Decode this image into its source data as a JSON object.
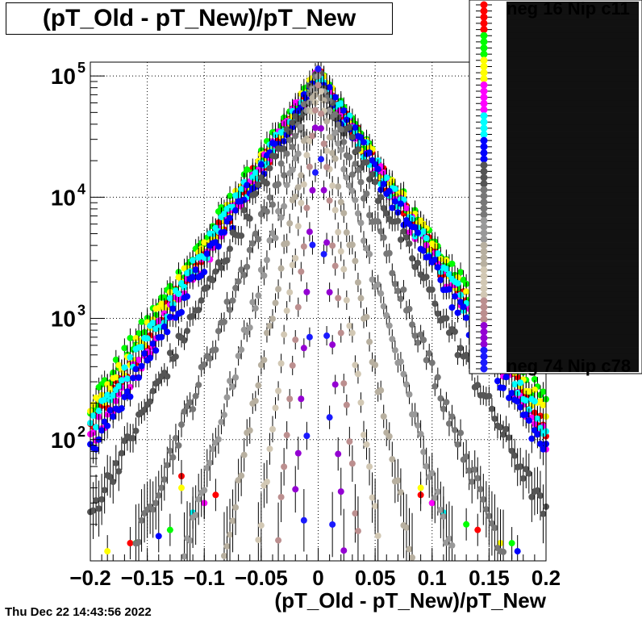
{
  "title": "(pT_Old - pT_New)/pT_New",
  "timestamp": "Thu Dec 22 14:43:56 2022",
  "legend_entries": [
    "neg 16 Nip c11",
    "neg 74 Nip c78"
  ],
  "chart_data": {
    "type": "scatter",
    "title": "(pT_Old - pT_New)/pT_New",
    "xlabel": "(pT_Old - pT_New)/pT_New",
    "ylabel": "",
    "xlim": [
      -0.2,
      0.2
    ],
    "ylim": [
      10,
      130000
    ],
    "ylog": true,
    "grid": true,
    "legend_position": "right",
    "x_ticks": [
      -0.2,
      -0.15,
      -0.1,
      -0.05,
      0,
      0.05,
      0.1,
      0.15,
      0.2
    ],
    "x_tick_labels": [
      "−0.2",
      "−0.15",
      "−0.1",
      "−0.05",
      "0",
      "0.05",
      "0.1",
      "0.15",
      "0.2"
    ],
    "y_ticks": [
      100,
      1000,
      10000,
      100000
    ],
    "y_tick_labels": [
      {
        "base": "10",
        "exp": "2"
      },
      {
        "base": "10",
        "exp": "3"
      },
      {
        "base": "10",
        "exp": "4"
      },
      {
        "base": "10",
        "exp": "5"
      }
    ],
    "series": [
      {
        "color": "#ff0000",
        "width": 0.03,
        "x": [
          -0.165,
          -0.12,
          -0.09,
          0.09,
          0.14
        ],
        "y": [
          14,
          50,
          35,
          35,
          18
        ]
      },
      {
        "color": "#00ff00",
        "width": 0.032,
        "x": [
          -0.16,
          -0.13,
          -0.1,
          0.1,
          0.13,
          0.17
        ],
        "y": [
          14,
          18,
          30,
          30,
          20,
          14
        ]
      },
      {
        "color": "#ffff00",
        "width": 0.031,
        "x": [
          -0.185,
          -0.12,
          0.09,
          0.16
        ],
        "y": [
          12,
          40,
          40,
          14
        ]
      },
      {
        "color": "#ff00ff",
        "width": 0.029,
        "x": [
          -0.1,
          0.1
        ],
        "y": [
          30,
          30
        ]
      },
      {
        "color": "#00ffff",
        "width": 0.03,
        "x": [
          -0.11,
          0.11
        ],
        "y": [
          25,
          25
        ]
      },
      {
        "color": "#0000ff",
        "width": 0.028,
        "x": [
          -0.14,
          0.175
        ],
        "y": [
          16,
          12
        ]
      },
      {
        "color": "#555555",
        "width": 0.024,
        "x": [],
        "y": []
      },
      {
        "color": "#777777",
        "width": 0.018,
        "x": [],
        "y": []
      },
      {
        "color": "#999999",
        "width": 0.013,
        "x": [],
        "y": []
      },
      {
        "color": "#b8b0a0",
        "width": 0.009,
        "x": [],
        "y": []
      },
      {
        "color": "#d2c8b4",
        "width": 0.006,
        "x": [],
        "y": []
      },
      {
        "color": "#bc8f8f",
        "width": 0.004,
        "x": [],
        "y": []
      },
      {
        "color": "#9400d3",
        "width": 0.0025,
        "x": [],
        "y": []
      },
      {
        "color": "#1a1aff",
        "width": 0.0015,
        "x": [],
        "y": []
      }
    ]
  }
}
